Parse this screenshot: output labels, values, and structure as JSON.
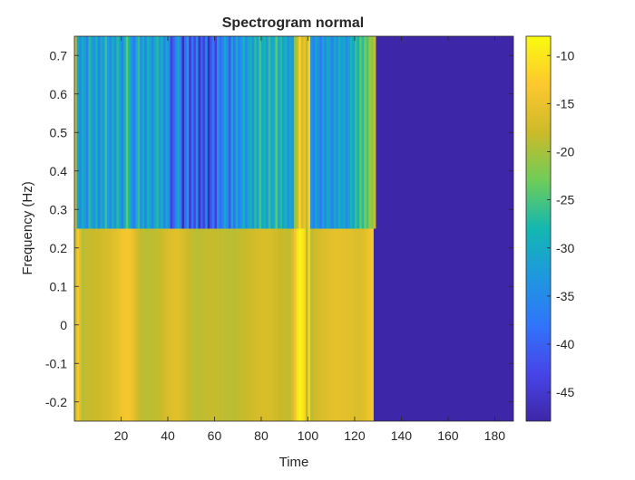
{
  "chart_data": {
    "type": "heatmap",
    "title": "Spectrogram normal",
    "xlabel": "Time",
    "ylabel": "Frequency (Hz)",
    "xlim": [
      0,
      188
    ],
    "ylim": [
      -0.25,
      0.75
    ],
    "xticks": [
      20,
      40,
      60,
      80,
      100,
      120,
      140,
      160,
      180
    ],
    "yticks": [
      -0.2,
      -0.1,
      0,
      0.1,
      0.2,
      0.3,
      0.4,
      0.5,
      0.6,
      0.7
    ],
    "colorbar": {
      "colormap": "parula",
      "clim": [
        -48,
        -8
      ],
      "ticks": [
        -10,
        -15,
        -20,
        -25,
        -30,
        -35,
        -40,
        -45
      ]
    },
    "frequency_bands": [
      {
        "from": -0.25,
        "to": 0.25
      },
      {
        "from": 0.25,
        "to": 0.75
      }
    ],
    "time_start": 0,
    "time_step": 1,
    "low_band_db": [
      -18.5,
      -13.2,
      -15.8,
      -19.8,
      -18.6,
      -18.4,
      -18.3,
      -18.2,
      -18.1,
      -18.0,
      -17.8,
      -17.6,
      -17.4,
      -17.2,
      -16.9,
      -16.6,
      -16.2,
      -15.8,
      -15.3,
      -14.8,
      -14.2,
      -13.8,
      -13.6,
      -13.8,
      -14.5,
      -15.6,
      -16.8,
      -17.8,
      -18.5,
      -18.8,
      -19.0,
      -19.0,
      -18.9,
      -18.8,
      -18.7,
      -18.5,
      -18.2,
      -17.8,
      -17.4,
      -17.0,
      -16.6,
      -16.2,
      -15.9,
      -15.8,
      -16.0,
      -16.4,
      -16.9,
      -17.4,
      -17.9,
      -18.3,
      -18.6,
      -18.8,
      -18.9,
      -18.9,
      -18.8,
      -18.7,
      -18.5,
      -18.4,
      -18.3,
      -18.3,
      -18.4,
      -18.5,
      -18.6,
      -18.7,
      -18.8,
      -18.9,
      -18.9,
      -18.9,
      -18.9,
      -18.8,
      -18.7,
      -18.5,
      -18.3,
      -18.1,
      -17.9,
      -17.7,
      -17.5,
      -17.3,
      -17.1,
      -16.9,
      -16.8,
      -16.7,
      -16.7,
      -16.8,
      -17.0,
      -17.3,
      -17.6,
      -17.9,
      -18.1,
      -18.3,
      -18.4,
      -18.5,
      -18.5,
      -16.5,
      -14.0,
      -10.5,
      -8.5,
      -9.5,
      -11.5,
      -19.5,
      -12.0,
      -19.0,
      -18.0,
      -17.5,
      -17.2,
      -16.9,
      -16.6,
      -16.3,
      -16.0,
      -15.8,
      -15.6,
      -15.5,
      -15.4,
      -15.4,
      -15.4,
      -15.5,
      -15.6,
      -15.8,
      -16.0,
      -16.2,
      -16.4,
      -16.5,
      -16.5,
      -16.3,
      -15.8,
      -15.0,
      -14.2,
      -13.5
    ],
    "high_band_db": [
      -17.8,
      -31.0,
      -35.0,
      -29.0,
      -33.0,
      -36.0,
      -27.0,
      -31.0,
      -34.0,
      -28.0,
      -36.0,
      -30.0,
      -33.0,
      -26.0,
      -32.0,
      -35.0,
      -29.0,
      -34.0,
      -27.0,
      -31.0,
      -36.0,
      -30.0,
      -24.0,
      -28.0,
      -33.0,
      -37.0,
      -31.0,
      -26.0,
      -34.0,
      -30.0,
      -36.0,
      -28.0,
      -32.0,
      -35.0,
      -30.0,
      -27.0,
      -33.0,
      -29.0,
      -36.0,
      -31.0,
      -34.0,
      -44.0,
      -40.0,
      -35.0,
      -31.0,
      -36.0,
      -47.0,
      -39.0,
      -33.0,
      -45.0,
      -38.0,
      -43.0,
      -35.0,
      -46.0,
      -40.0,
      -44.0,
      -36.0,
      -47.0,
      -41.0,
      -38.0,
      -44.0,
      -34.0,
      -39.0,
      -36.0,
      -31.0,
      -35.0,
      -41.0,
      -32.0,
      -38.0,
      -30.0,
      -36.0,
      -33.0,
      -28.0,
      -35.0,
      -31.0,
      -29.0,
      -34.0,
      -27.0,
      -32.0,
      -25.0,
      -30.0,
      -28.0,
      -33.0,
      -26.0,
      -31.0,
      -29.0,
      -24.0,
      -30.0,
      -27.0,
      -32.0,
      -28.0,
      -34.0,
      -31.0,
      -33.0,
      -22.0,
      -18.0,
      -12.0,
      -17.0,
      -15.0,
      -19.0,
      -12.5,
      -33.0,
      -36.0,
      -31.0,
      -34.0,
      -37.0,
      -32.0,
      -35.0,
      -30.0,
      -33.0,
      -36.0,
      -31.0,
      -34.0,
      -29.0,
      -33.0,
      -30.0,
      -35.0,
      -32.0,
      -28.0,
      -31.0,
      -26.0,
      -29.0,
      -24.0,
      -27.0,
      -23.0,
      -25.0,
      -20.0,
      -22.0,
      -18.0
    ]
  }
}
